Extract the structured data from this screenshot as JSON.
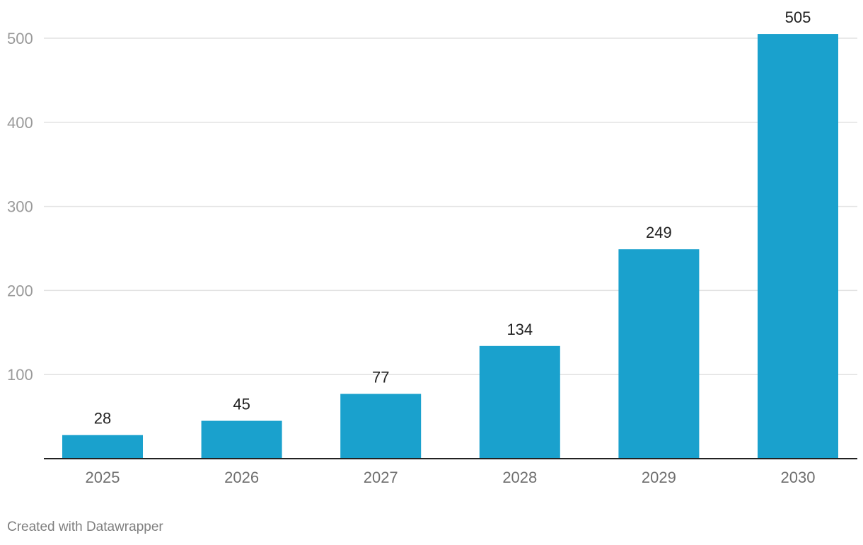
{
  "chart_data": {
    "type": "bar",
    "categories": [
      "2025",
      "2026",
      "2027",
      "2028",
      "2029",
      "2030"
    ],
    "values": [
      28,
      45,
      77,
      134,
      249,
      505
    ],
    "yticks": [
      100,
      200,
      300,
      400,
      500
    ],
    "ylim": [
      0,
      505
    ],
    "grid": true,
    "data_labels": true,
    "colors": {
      "bar": "#1aa1cd",
      "gridline": "#e2e2e2",
      "baseline": "#222222"
    }
  },
  "footer": {
    "credit": "Created with Datawrapper"
  }
}
